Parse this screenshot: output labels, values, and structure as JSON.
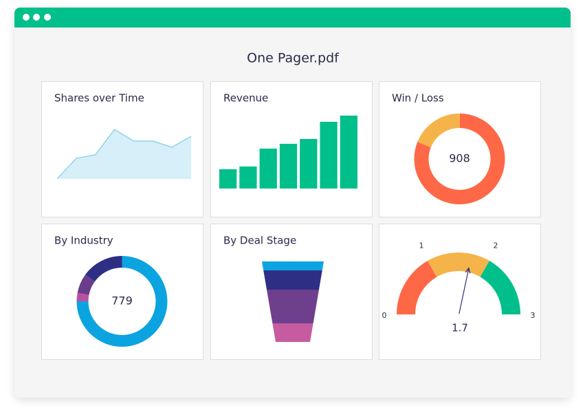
{
  "window": {
    "title": "One Pager.pdf"
  },
  "chart_data": [
    {
      "type": "area",
      "title": "Shares over Time",
      "values": [
        0,
        30,
        35,
        72,
        55,
        55,
        46,
        62
      ],
      "color": "#d6eff8",
      "line_color": "#7fcbe6"
    },
    {
      "type": "bar",
      "title": "Revenue",
      "values": [
        28,
        32,
        58,
        65,
        72,
        97,
        106
      ],
      "color": "#00bf8a"
    },
    {
      "type": "donut",
      "title": "Win / Loss",
      "values": [
        19,
        81
      ],
      "colors": [
        "#f4b44a",
        "#ff6846"
      ],
      "center_label": 908
    },
    {
      "type": "donut",
      "title": "By Industry",
      "values": [
        75,
        3,
        7,
        15
      ],
      "colors": [
        "#0ca4e0",
        "#b852a0",
        "#6a3c8c",
        "#2e2e85"
      ],
      "center_label": 779
    },
    {
      "type": "funnel",
      "title": "By Deal Stage",
      "values": [
        13,
        28,
        49,
        27
      ],
      "colors": [
        "#0ca4e0",
        "#2e2e85",
        "#6e3f8c",
        "#c65ba0"
      ]
    },
    {
      "type": "gauge",
      "xlim": [
        0,
        3
      ],
      "xticks": [
        0,
        1,
        2,
        3
      ],
      "value": 1.7,
      "colors": [
        "#ff6846",
        "#f4b44a",
        "#00bf8a"
      ]
    }
  ]
}
